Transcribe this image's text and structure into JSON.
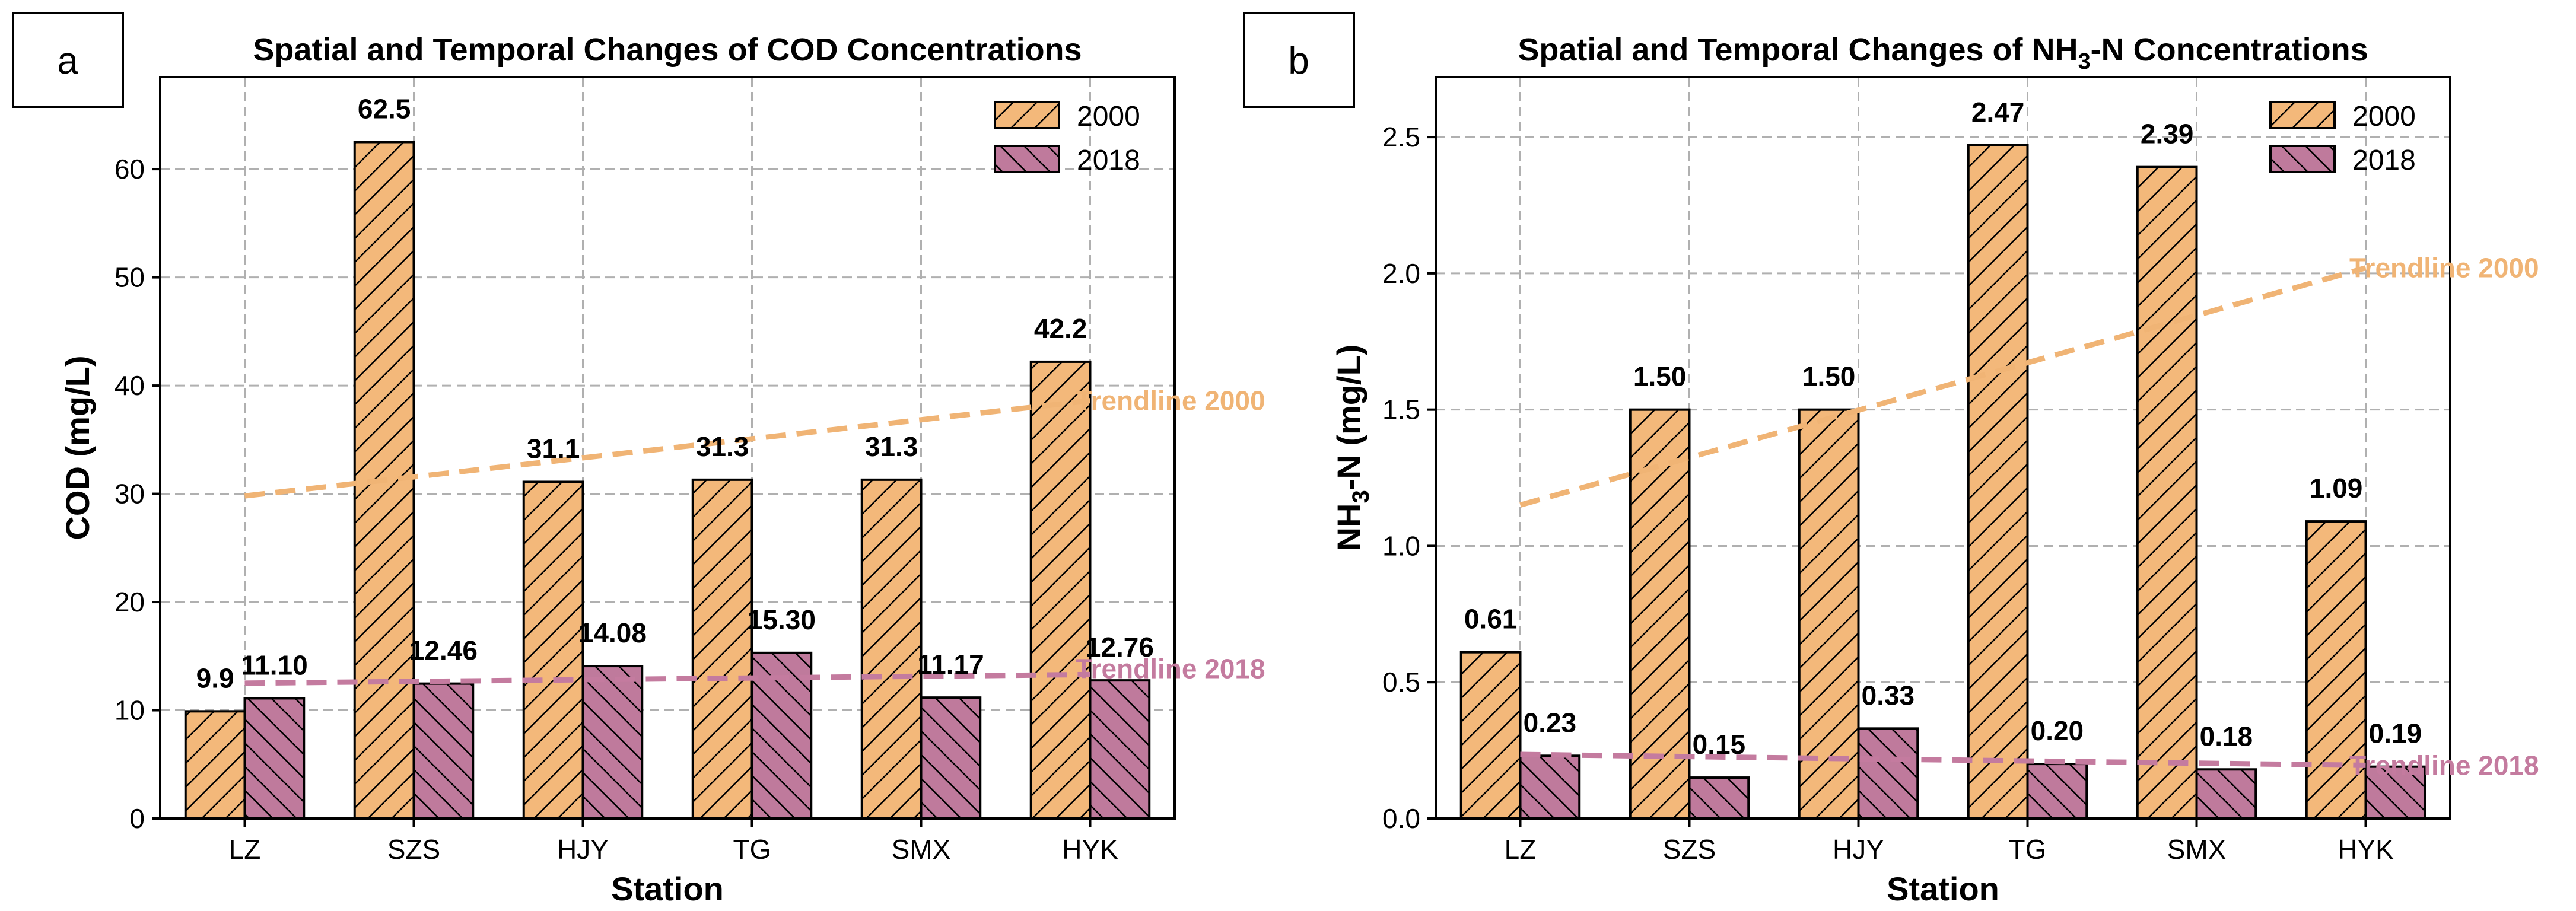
{
  "colors": {
    "bar_2000": "#f3b87a",
    "bar_2018": "#bf7a9c",
    "trend_2000": "#f0b475",
    "trend_2018": "#c47b9f"
  },
  "chart_data": [
    {
      "type": "bar",
      "panel_label": "a",
      "title": "Spatial and Temporal Changes of COD Concentrations",
      "xlabel": "Station",
      "ylabel": "COD (mg/L)",
      "ylim": [
        0,
        68.5
      ],
      "yticks": [
        0,
        10,
        20,
        30,
        40,
        50,
        60
      ],
      "grid": true,
      "legend_position": "top-right",
      "categories": [
        "LZ",
        "SZS",
        "HJY",
        "TG",
        "SMX",
        "HYK"
      ],
      "series": [
        {
          "name": "2000",
          "values": [
            9.9,
            62.5,
            31.1,
            31.3,
            31.3,
            42.2
          ],
          "labels": [
            "9.9",
            "62.5",
            "31.1",
            "31.3",
            "31.3",
            "42.2"
          ]
        },
        {
          "name": "2018",
          "values": [
            11.1,
            12.46,
            14.08,
            15.3,
            11.17,
            12.76
          ],
          "labels": [
            "11.10",
            "12.46",
            "14.08",
            "15.30",
            "11.17",
            "12.76"
          ]
        }
      ],
      "trendlines": [
        {
          "name": "Trendline 2000",
          "series": "2000",
          "start": 29.8,
          "end": 38.6
        },
        {
          "name": "Trendline 2018",
          "series": "2018",
          "start": 12.5,
          "end": 13.3
        }
      ]
    },
    {
      "type": "bar",
      "panel_label": "b",
      "title_prefix": "Spatial and Temporal Changes of NH",
      "title_sub": "3",
      "title_suffix": "-N Concentrations",
      "xlabel": "Station",
      "ylabel_prefix": "NH",
      "ylabel_sub": "3",
      "ylabel_suffix": "-N (mg/L)",
      "ylim": [
        0,
        2.72
      ],
      "yticks": [
        0.0,
        0.5,
        1.0,
        1.5,
        2.0,
        2.5
      ],
      "ytick_labels": [
        "0.0",
        "0.5",
        "1.0",
        "1.5",
        "2.0",
        "2.5"
      ],
      "grid": true,
      "legend_position": "top-right",
      "categories": [
        "LZ",
        "SZS",
        "HJY",
        "TG",
        "SMX",
        "HYK"
      ],
      "series": [
        {
          "name": "2000",
          "values": [
            0.61,
            1.5,
            1.5,
            2.47,
            2.39,
            1.09
          ],
          "labels": [
            "0.61",
            "1.50",
            "1.50",
            "2.47",
            "2.39",
            "1.09"
          ]
        },
        {
          "name": "2018",
          "values": [
            0.23,
            0.15,
            0.33,
            0.2,
            0.18,
            0.19
          ],
          "labels": [
            "0.23",
            "0.15",
            "0.33",
            "0.20",
            "0.18",
            "0.19"
          ]
        }
      ],
      "trendlines": [
        {
          "name": "Trendline 2000",
          "series": "2000",
          "start": 1.15,
          "end": 2.02
        },
        {
          "name": "Trendline 2018",
          "series": "2018",
          "start": 0.235,
          "end": 0.195
        }
      ]
    }
  ]
}
